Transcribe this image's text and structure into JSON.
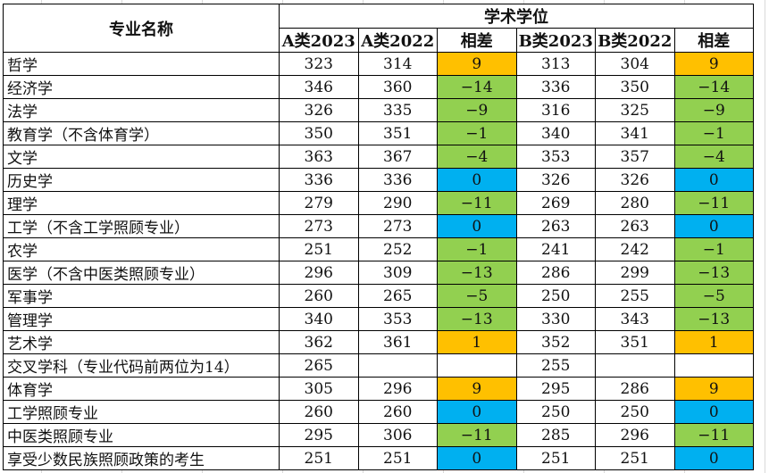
{
  "header": {
    "major_name": "专业名称",
    "group": "学术学位",
    "columns": [
      "A类2023",
      "A类2022",
      "相差",
      "B类2023",
      "B类2022",
      "相差"
    ]
  },
  "colors": {
    "positive": "#ffc000",
    "negative": "#92d050",
    "zero": "#00b0f0"
  },
  "rows": [
    {
      "name": "哲学",
      "a2023": "323",
      "a2022": "314",
      "adiff": "9",
      "b2023": "313",
      "b2022": "304",
      "bdiff": "9"
    },
    {
      "name": "经济学",
      "a2023": "346",
      "a2022": "360",
      "adiff": "-14",
      "b2023": "336",
      "b2022": "350",
      "bdiff": "-14"
    },
    {
      "name": "法学",
      "a2023": "326",
      "a2022": "335",
      "adiff": "-9",
      "b2023": "316",
      "b2022": "325",
      "bdiff": "-9"
    },
    {
      "name": "教育学（不含体育学）",
      "a2023": "350",
      "a2022": "351",
      "adiff": "-1",
      "b2023": "340",
      "b2022": "341",
      "bdiff": "-1"
    },
    {
      "name": "文学",
      "a2023": "363",
      "a2022": "367",
      "adiff": "-4",
      "b2023": "353",
      "b2022": "357",
      "bdiff": "-4"
    },
    {
      "name": "历史学",
      "a2023": "336",
      "a2022": "336",
      "adiff": "0",
      "b2023": "326",
      "b2022": "326",
      "bdiff": "0"
    },
    {
      "name": "理学",
      "a2023": "279",
      "a2022": "290",
      "adiff": "-11",
      "b2023": "269",
      "b2022": "280",
      "bdiff": "-11"
    },
    {
      "name": "工学（不含工学照顾专业）",
      "a2023": "273",
      "a2022": "273",
      "adiff": "0",
      "b2023": "263",
      "b2022": "263",
      "bdiff": "0"
    },
    {
      "name": "农学",
      "a2023": "251",
      "a2022": "252",
      "adiff": "-1",
      "b2023": "241",
      "b2022": "242",
      "bdiff": "-1"
    },
    {
      "name": "医学（不含中医类照顾专业）",
      "a2023": "296",
      "a2022": "309",
      "adiff": "-13",
      "b2023": "286",
      "b2022": "299",
      "bdiff": "-13"
    },
    {
      "name": "军事学",
      "a2023": "260",
      "a2022": "265",
      "adiff": "-5",
      "b2023": "250",
      "b2022": "255",
      "bdiff": "-5"
    },
    {
      "name": "管理学",
      "a2023": "340",
      "a2022": "353",
      "adiff": "-13",
      "b2023": "330",
      "b2022": "343",
      "bdiff": "-13"
    },
    {
      "name": "艺术学",
      "a2023": "362",
      "a2022": "361",
      "adiff": "1",
      "b2023": "352",
      "b2022": "351",
      "bdiff": "1"
    },
    {
      "name": "交叉学科（专业代码前两位为14）",
      "a2023": "265",
      "a2022": "",
      "adiff": "",
      "b2023": "255",
      "b2022": "",
      "bdiff": ""
    },
    {
      "name": "体育学",
      "a2023": "305",
      "a2022": "296",
      "adiff": "9",
      "b2023": "295",
      "b2022": "286",
      "bdiff": "9"
    },
    {
      "name": "工学照顾专业",
      "a2023": "260",
      "a2022": "260",
      "adiff": "0",
      "b2023": "250",
      "b2022": "250",
      "bdiff": "0"
    },
    {
      "name": "中医类照顾专业",
      "a2023": "295",
      "a2022": "306",
      "adiff": "-11",
      "b2023": "285",
      "b2022": "296",
      "bdiff": "-11"
    },
    {
      "name": "享受少数民族照顾政策的考生",
      "a2023": "251",
      "a2022": "251",
      "adiff": "0",
      "b2023": "251",
      "b2022": "251",
      "bdiff": "0"
    }
  ]
}
